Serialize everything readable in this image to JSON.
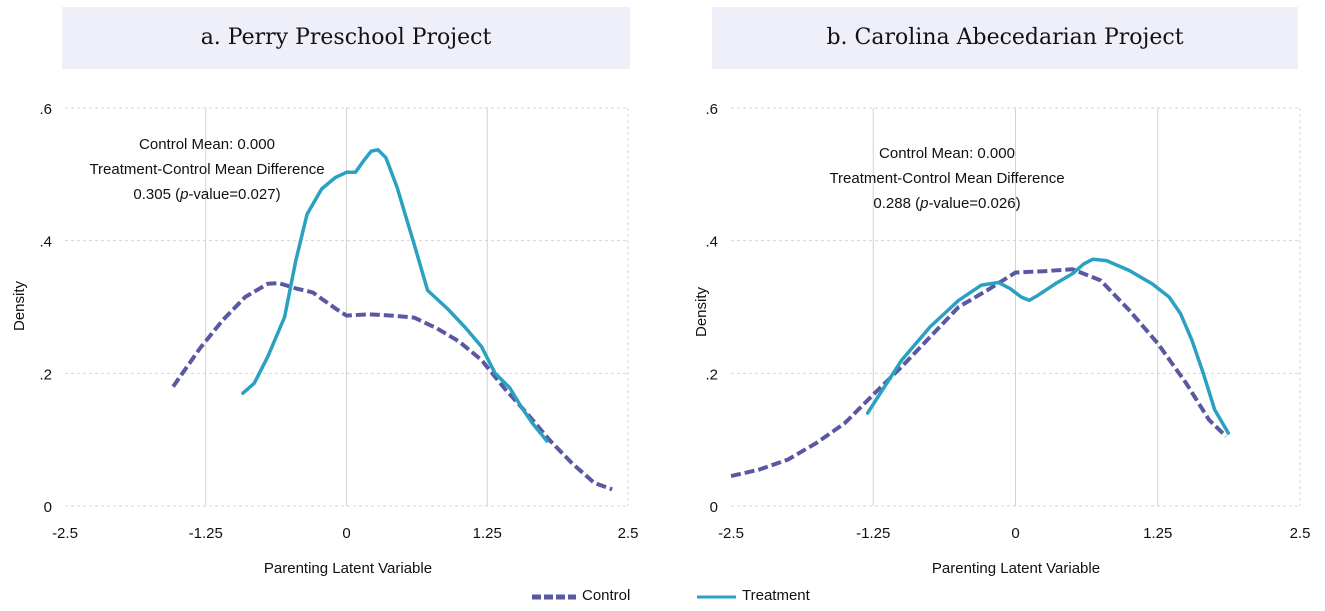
{
  "colors": {
    "control": "#5b58a3",
    "treatment": "#2aa1c0",
    "title_bg": "#eeeff8",
    "grid": "#d4d4d4"
  },
  "legend": {
    "control": "Control",
    "treatment": "Treatment"
  },
  "chart_data": [
    {
      "type": "line",
      "title": "a. Perry Preschool Project",
      "xlabel": "Parenting Latent Variable",
      "ylabel": "Density",
      "xlim": [
        -2.5,
        2.5
      ],
      "ylim": [
        0,
        0.6
      ],
      "xticks": [
        -2.5,
        -1.25,
        0,
        1.25,
        2.5
      ],
      "xtick_labels": [
        "-2.5",
        "-1.25",
        "0",
        "1.25",
        "2.5"
      ],
      "yticks": [
        0,
        0.2,
        0.4,
        0.6
      ],
      "ytick_labels": [
        "0",
        ".2",
        ".4",
        ".6"
      ],
      "grid": true,
      "annotation": {
        "line1": "Control Mean: 0.000",
        "line2": "Treatment-Control Mean Difference",
        "line3_value": "0.305 (",
        "line3_p": "p",
        "line3_rest": "-value=0.027)"
      },
      "series": [
        {
          "name": "Control",
          "style": "dashed",
          "x": [
            -1.54,
            -1.3,
            -1.1,
            -0.9,
            -0.7,
            -0.6,
            -0.45,
            -0.3,
            -0.1,
            0.0,
            0.2,
            0.4,
            0.6,
            0.8,
            1.0,
            1.2,
            1.4,
            1.6,
            1.8,
            2.0,
            2.2,
            2.36
          ],
          "y": [
            0.18,
            0.238,
            0.28,
            0.315,
            0.335,
            0.336,
            0.328,
            0.322,
            0.298,
            0.287,
            0.289,
            0.287,
            0.284,
            0.268,
            0.248,
            0.22,
            0.178,
            0.14,
            0.1,
            0.065,
            0.035,
            0.025
          ]
        },
        {
          "name": "Treatment",
          "style": "solid",
          "x": [
            -0.92,
            -0.82,
            -0.7,
            -0.55,
            -0.45,
            -0.35,
            -0.22,
            -0.1,
            0.0,
            0.08,
            0.15,
            0.22,
            0.28,
            0.35,
            0.45,
            0.52,
            0.6,
            0.72,
            0.9,
            1.05,
            1.2,
            1.32,
            1.45,
            1.55,
            1.65,
            1.78
          ],
          "y": [
            0.17,
            0.185,
            0.225,
            0.285,
            0.37,
            0.44,
            0.478,
            0.495,
            0.503,
            0.503,
            0.52,
            0.535,
            0.537,
            0.525,
            0.48,
            0.44,
            0.395,
            0.325,
            0.297,
            0.27,
            0.24,
            0.2,
            0.178,
            0.15,
            0.125,
            0.098
          ]
        }
      ]
    },
    {
      "type": "line",
      "title": "b. Carolina Abecedarian Project",
      "xlabel": "Parenting Latent Variable",
      "ylabel": "Density",
      "xlim": [
        -2.5,
        2.5
      ],
      "ylim": [
        0,
        0.6
      ],
      "xticks": [
        -2.5,
        -1.25,
        0,
        1.25,
        2.5
      ],
      "xtick_labels": [
        "-2.5",
        "-1.25",
        "0",
        "1.25",
        "2.5"
      ],
      "yticks": [
        0,
        0.2,
        0.4,
        0.6
      ],
      "ytick_labels": [
        "0",
        ".2",
        ".4",
        ".6"
      ],
      "grid": true,
      "annotation": {
        "line1": "Control Mean: 0.000",
        "line2": "Treatment-Control Mean Difference",
        "line3_value": "0.288 (",
        "line3_p": "p",
        "line3_rest": "-value=0.026)"
      },
      "series": [
        {
          "name": "Control",
          "style": "dashed",
          "x": [
            -2.5,
            -2.25,
            -2.0,
            -1.75,
            -1.5,
            -1.25,
            -1.0,
            -0.75,
            -0.5,
            -0.25,
            0.0,
            0.25,
            0.5,
            0.75,
            1.0,
            1.25,
            1.5,
            1.7,
            1.85
          ],
          "y": [
            0.045,
            0.055,
            0.07,
            0.095,
            0.125,
            0.168,
            0.21,
            0.255,
            0.3,
            0.325,
            0.352,
            0.354,
            0.357,
            0.34,
            0.295,
            0.245,
            0.185,
            0.13,
            0.105
          ]
        },
        {
          "name": "Treatment",
          "style": "solid",
          "x": [
            -1.3,
            -1.15,
            -1.0,
            -0.75,
            -0.5,
            -0.3,
            -0.15,
            -0.05,
            0.05,
            0.12,
            0.2,
            0.35,
            0.5,
            0.6,
            0.68,
            0.8,
            1.0,
            1.2,
            1.35,
            1.45,
            1.55,
            1.65,
            1.75,
            1.87
          ],
          "y": [
            0.14,
            0.18,
            0.22,
            0.27,
            0.31,
            0.333,
            0.337,
            0.328,
            0.315,
            0.31,
            0.318,
            0.335,
            0.35,
            0.365,
            0.372,
            0.37,
            0.355,
            0.335,
            0.315,
            0.29,
            0.25,
            0.2,
            0.145,
            0.11
          ]
        }
      ]
    }
  ]
}
